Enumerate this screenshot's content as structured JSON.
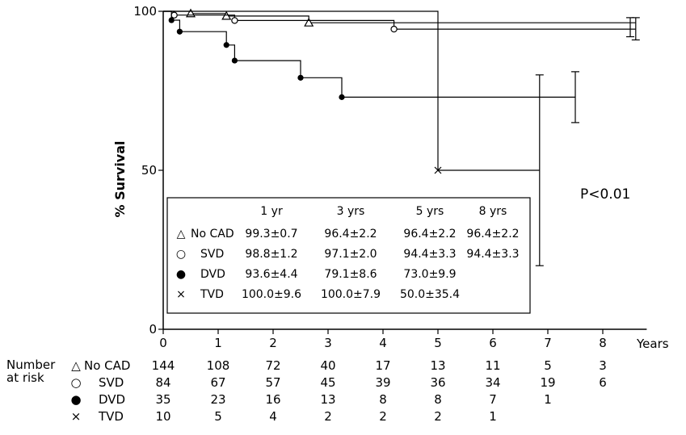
{
  "chart_data": {
    "type": "line",
    "title": "",
    "ylabel": "% Survival",
    "xlabel": "Years",
    "xlim": [
      0,
      8.8
    ],
    "ylim": [
      0,
      100
    ],
    "x_ticks": [
      "0",
      "1",
      "2",
      "3",
      "4",
      "5",
      "6",
      "7",
      "8"
    ],
    "y_ticks": [
      "0",
      "50",
      "100"
    ],
    "annotation": "P<0.01",
    "series": [
      {
        "name": "No CAD",
        "marker": "triangle",
        "points": [
          [
            0,
            100
          ],
          [
            0.5,
            100
          ],
          [
            0.5,
            99.3
          ],
          [
            1.15,
            99.3
          ],
          [
            1.15,
            98.5
          ],
          [
            2.65,
            98.5
          ],
          [
            2.65,
            96.4
          ],
          [
            8.6,
            96.4
          ]
        ],
        "censor": [
          [
            0.5,
            99.3
          ],
          [
            1.15,
            98.5
          ],
          [
            2.65,
            96.4
          ]
        ],
        "error_bar": {
          "x": 8.6,
          "low": 91,
          "high": 98
        }
      },
      {
        "name": "SVD",
        "marker": "circle",
        "points": [
          [
            0,
            100
          ],
          [
            0.2,
            100
          ],
          [
            0.2,
            98.8
          ],
          [
            1.3,
            98.8
          ],
          [
            1.3,
            97.1
          ],
          [
            4.2,
            97.1
          ],
          [
            4.2,
            94.4
          ],
          [
            8.6,
            94.4
          ]
        ],
        "censor": [
          [
            0.2,
            98.8
          ],
          [
            1.3,
            97.1
          ],
          [
            4.2,
            94.4
          ]
        ],
        "error_bar": {
          "x": 8.5,
          "low": 92,
          "high": 98
        }
      },
      {
        "name": "DVD",
        "marker": "filled-circle",
        "points": [
          [
            0,
            100
          ],
          [
            0.15,
            100
          ],
          [
            0.15,
            97.2
          ],
          [
            0.3,
            97.2
          ],
          [
            0.3,
            93.6
          ],
          [
            1.15,
            93.6
          ],
          [
            1.15,
            89.4
          ],
          [
            1.3,
            89.4
          ],
          [
            1.3,
            84.5
          ],
          [
            2.5,
            84.5
          ],
          [
            2.5,
            79.1
          ],
          [
            3.25,
            79.1
          ],
          [
            3.25,
            73
          ],
          [
            7.5,
            73
          ]
        ],
        "censor": [
          [
            0.15,
            97.2
          ],
          [
            0.3,
            93.6
          ],
          [
            1.15,
            89.4
          ],
          [
            1.3,
            84.5
          ],
          [
            2.5,
            79.1
          ],
          [
            3.25,
            73
          ]
        ],
        "error_bar": {
          "x": 7.5,
          "low": 65,
          "high": 81
        }
      },
      {
        "name": "TVD",
        "marker": "cross",
        "points": [
          [
            0,
            100
          ],
          [
            5,
            100
          ],
          [
            5,
            50
          ],
          [
            6.85,
            50
          ]
        ],
        "censor": [
          [
            5,
            50
          ]
        ],
        "error_bar": {
          "x": 6.85,
          "low": 20,
          "high": 80
        }
      }
    ]
  },
  "survival_table": {
    "headers": [
      "1 yr",
      "3 yrs",
      "5 yrs",
      "8 yrs"
    ],
    "rows": [
      {
        "symbol": "△",
        "label": "No CAD",
        "values": [
          "99.3±0.7",
          "96.4±2.2",
          "96.4±2.2",
          "96.4±2.2"
        ]
      },
      {
        "symbol": "○",
        "label": "SVD",
        "values": [
          "98.8±1.2",
          "97.1±2.0",
          "94.4±3.3",
          "94.4±3.3"
        ]
      },
      {
        "symbol": "●",
        "label": "DVD",
        "values": [
          "93.6±4.4",
          "79.1±8.6",
          "73.0±9.9",
          ""
        ]
      },
      {
        "symbol": "×",
        "label": "TVD",
        "values": [
          "100.0±9.6",
          "100.0±7.9",
          "50.0±35.4",
          ""
        ]
      }
    ]
  },
  "at_risk": {
    "label_line1": "Number",
    "label_line2": "at risk",
    "rows": [
      {
        "symbol": "△",
        "label": "No CAD",
        "values": [
          "144",
          "108",
          "72",
          "40",
          "17",
          "13",
          "11",
          "5",
          "3"
        ]
      },
      {
        "symbol": "○",
        "label": "SVD",
        "values": [
          "84",
          "67",
          "57",
          "45",
          "39",
          "36",
          "34",
          "19",
          "6"
        ]
      },
      {
        "symbol": "●",
        "label": "DVD",
        "values": [
          "35",
          "23",
          "16",
          "13",
          "8",
          "8",
          "7",
          "1",
          ""
        ]
      },
      {
        "symbol": "×",
        "label": "TVD",
        "values": [
          "10",
          "5",
          "4",
          "2",
          "2",
          "2",
          "1",
          "",
          ""
        ]
      }
    ]
  }
}
